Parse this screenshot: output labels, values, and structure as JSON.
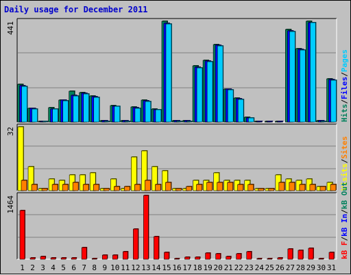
{
  "chart_data": {
    "type": "bar",
    "title": "Daily usage for December 2011",
    "categories": [
      "1",
      "2",
      "3",
      "4",
      "5",
      "6",
      "7",
      "8",
      "9",
      "10",
      "11",
      "12",
      "13",
      "14",
      "15",
      "16",
      "17",
      "18",
      "19",
      "20",
      "21",
      "22",
      "23",
      "24",
      "25",
      "26",
      "27",
      "28",
      "29",
      "30",
      "31"
    ],
    "weekend_days": [
      "3",
      "4",
      "10",
      "11",
      "17",
      "18",
      "24",
      "25",
      "31"
    ],
    "colors": {
      "normal_day": "#000000",
      "weekend_day": "#00805c",
      "title": "#0000cc",
      "hits": "#00805c",
      "files": "#0000ff",
      "pages": "#00ccff",
      "visits": "#ffff00",
      "sites": "#ff8000",
      "kb_f": "#ff0000",
      "kb_in": "#0000ff",
      "kb_out": "#00805c"
    },
    "panels": [
      {
        "id": "hits-files-pages",
        "ymax": 441,
        "ylim": [
          0,
          441
        ],
        "ytick_label": "441",
        "legend": [
          {
            "text": "Hits",
            "color": "#00805c"
          },
          {
            "text": "/",
            "color": "#000000"
          },
          {
            "text": "Files",
            "color": "#0000ff"
          },
          {
            "text": "/",
            "color": "#000000"
          },
          {
            "text": "Pages",
            "color": "#00ccff"
          }
        ],
        "series": [
          {
            "name": "Hits",
            "color": "#00805c",
            "values": [
              165,
              60,
              2,
              62,
              95,
              135,
              130,
              115,
              5,
              72,
              5,
              65,
              95,
              58,
              441,
              5,
              5,
              245,
              270,
              340,
              145,
              105,
              20,
              2,
              2,
              2,
              405,
              320,
              441,
              5,
              190
            ]
          },
          {
            "name": "Files",
            "color": "#0000ff",
            "values": [
              158,
              60,
              2,
              58,
              95,
              118,
              126,
              112,
              5,
              70,
              5,
              62,
              92,
              55,
              432,
              5,
              5,
              240,
              268,
              335,
              143,
              103,
              18,
              2,
              2,
              2,
              400,
              318,
              436,
              5,
              185
            ]
          },
          {
            "name": "Pages",
            "color": "#00ccff",
            "values": [
              155,
              58,
              2,
              56,
              93,
              115,
              123,
              108,
              4,
              68,
              4,
              60,
              90,
              54,
              430,
              4,
              4,
              238,
              265,
              333,
              140,
              100,
              17,
              1,
              1,
              1,
              395,
              314,
              434,
              4,
              183
            ]
          }
        ]
      },
      {
        "id": "visits-sites",
        "ymax": 32,
        "ylim": [
          0,
          32
        ],
        "ytick_label": "32",
        "legend": [
          {
            "text": "Visits",
            "color": "#ffff00"
          },
          {
            "text": "/",
            "color": "#000000"
          },
          {
            "text": "Sites",
            "color": "#ff8000"
          }
        ],
        "series": [
          {
            "name": "Visits",
            "color": "#ffff00",
            "values": [
              32,
              12,
              1,
              6,
              5,
              8,
              8,
              9,
              1,
              6,
              1,
              17,
              20,
              12,
              10,
              1,
              1,
              5,
              5,
              9,
              5,
              5,
              5,
              1,
              1,
              8,
              6,
              5,
              6,
              2,
              4
            ]
          },
          {
            "name": "Sites",
            "color": "#ff8000",
            "values": [
              5,
              3,
              1,
              3,
              3,
              4,
              3,
              3,
              1,
              2,
              2,
              3,
              5,
              3,
              4,
              1,
              2,
              3,
              4,
              4,
              4,
              3,
              3,
              1,
              1,
              4,
              4,
              3,
              3,
              2,
              3
            ]
          }
        ]
      },
      {
        "id": "kbytes",
        "ymax": 1464,
        "ylim": [
          0,
          1464
        ],
        "ytick_label": "1464",
        "legend": [
          {
            "text": "kB F",
            "color": "#ff0000"
          },
          {
            "text": "/",
            "color": "#000000"
          },
          {
            "text": "kB In",
            "color": "#0000ff"
          },
          {
            "text": "/",
            "color": "#000000"
          },
          {
            "text": "kB Out",
            "color": "#00805c"
          }
        ],
        "series": [
          {
            "name": "kB F",
            "color": "#ff0000",
            "values": [
              1125,
              25,
              60,
              25,
              25,
              30,
              275,
              20,
              100,
              100,
              175,
              700,
              1464,
              525,
              150,
              15,
              45,
              50,
              140,
              125,
              65,
              130,
              175,
              15,
              15,
              25,
              240,
              200,
              250,
              20,
              150
            ]
          }
        ]
      }
    ]
  }
}
